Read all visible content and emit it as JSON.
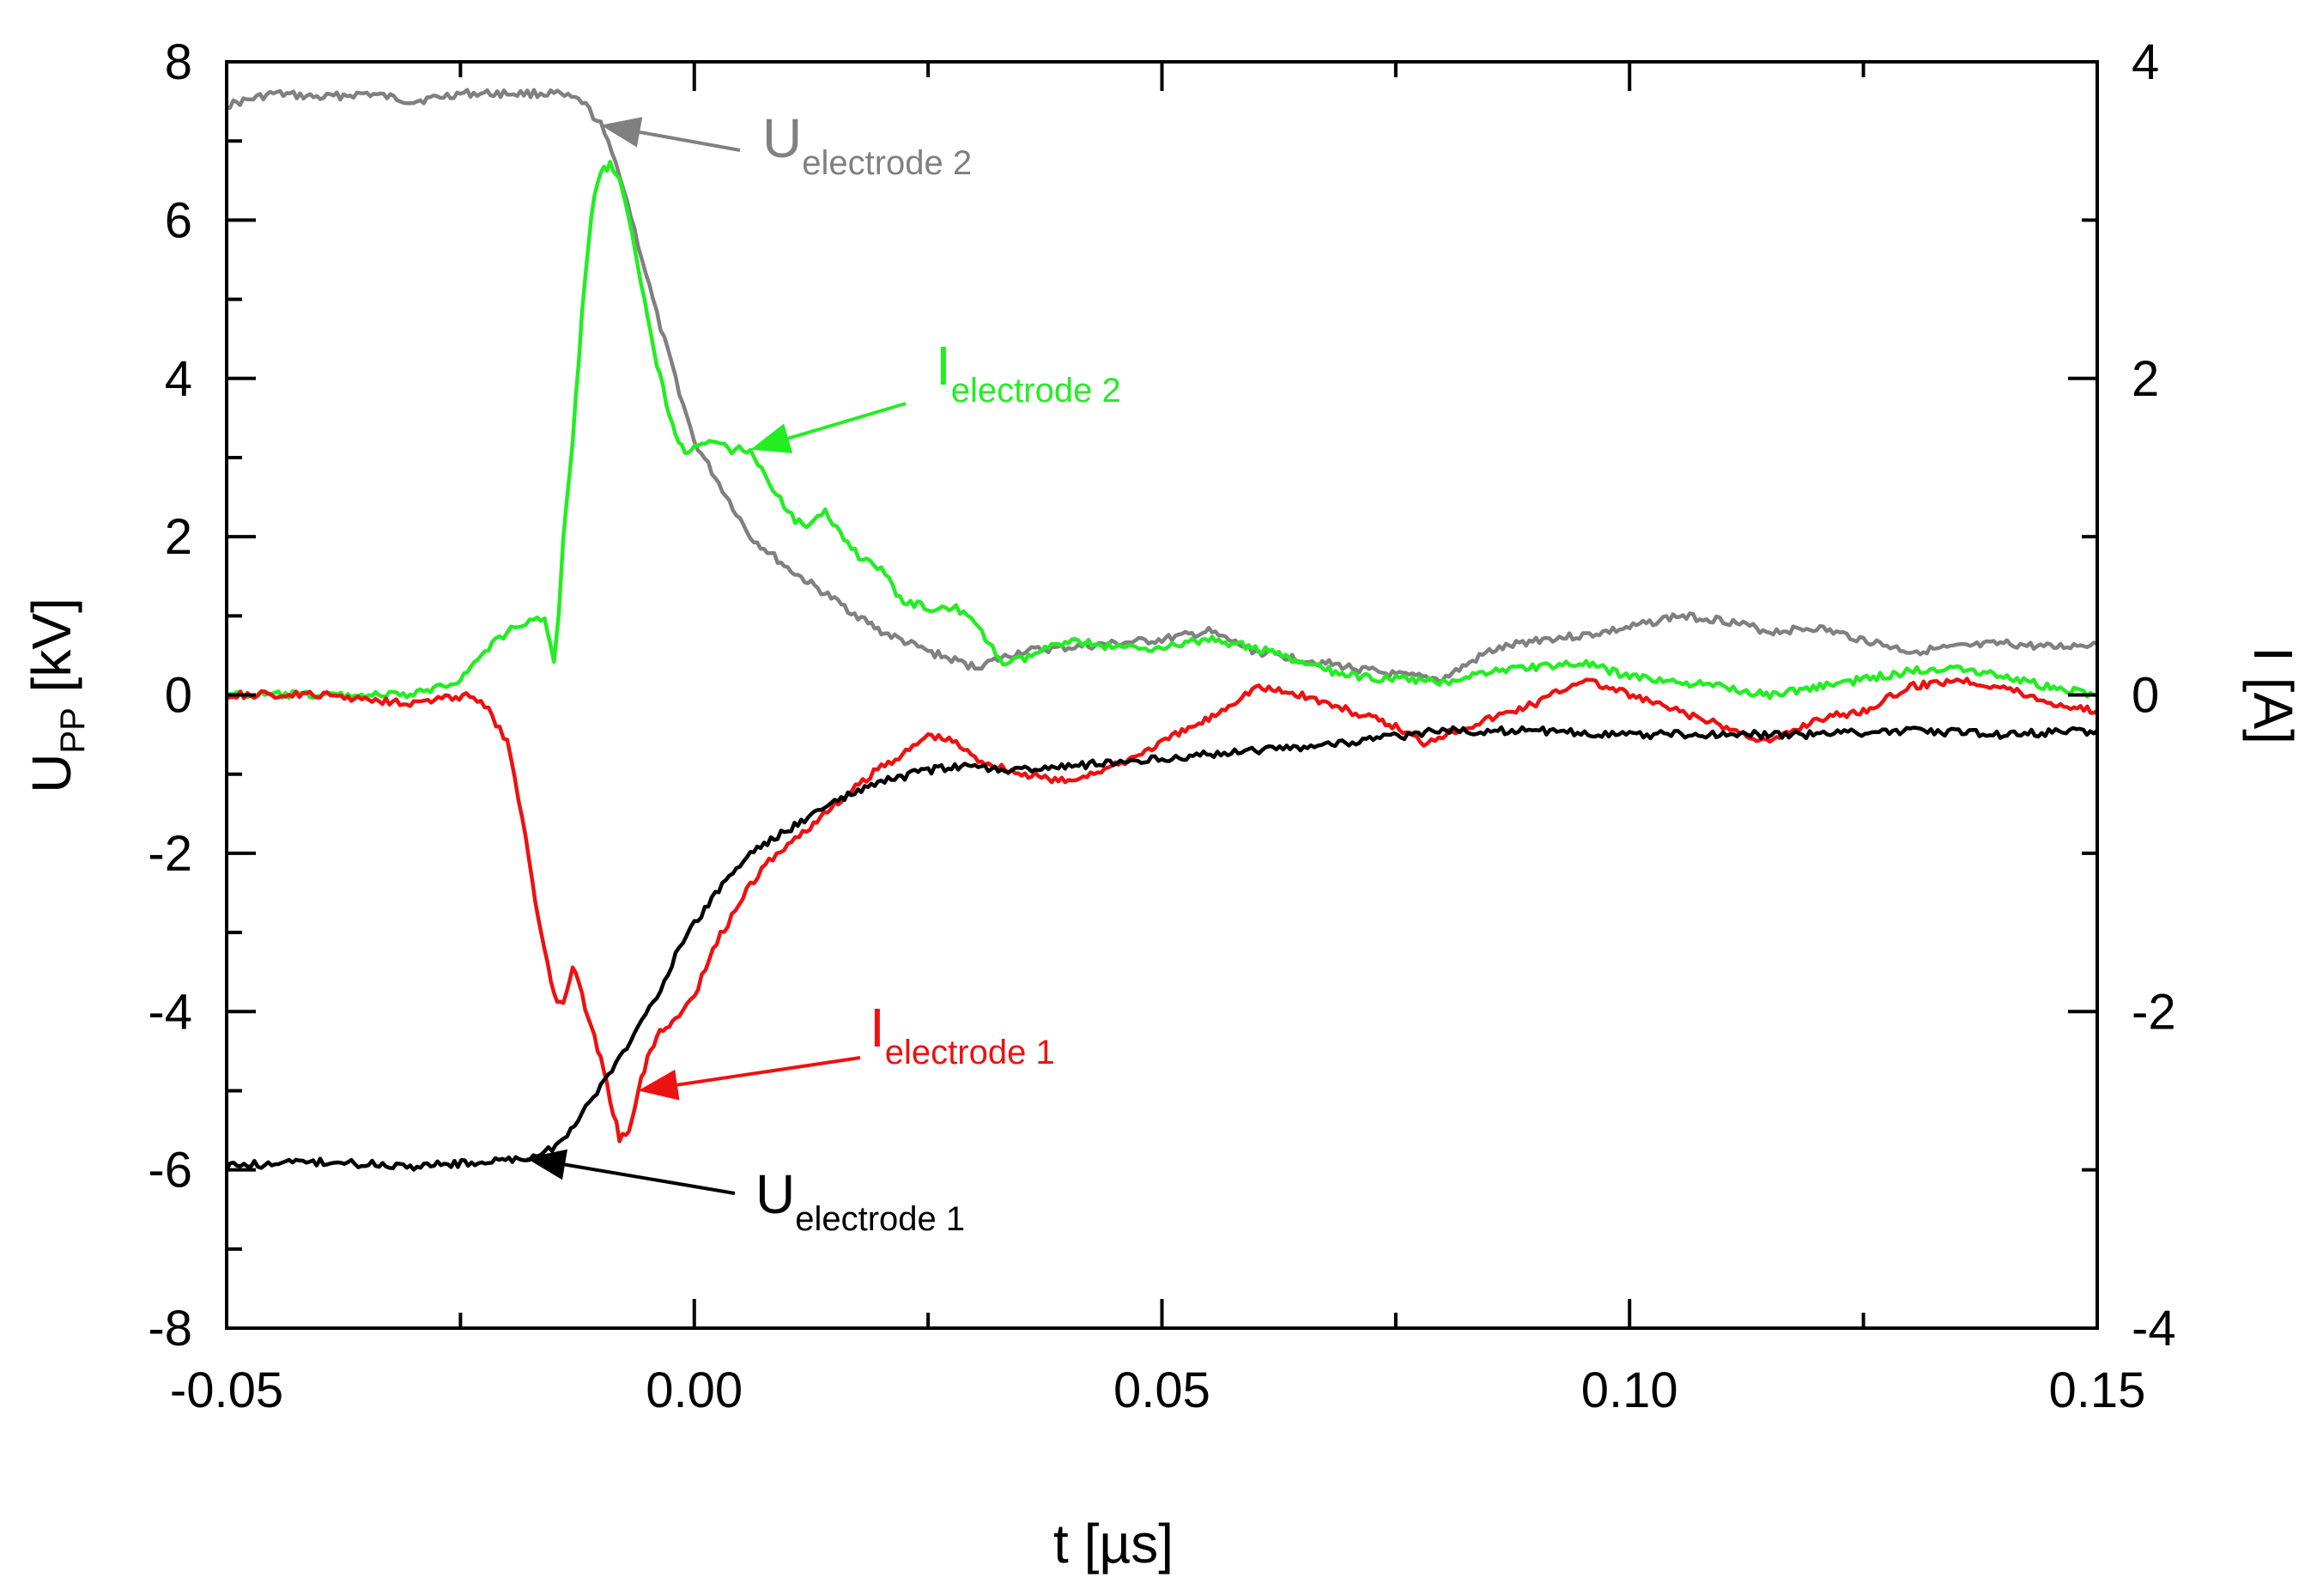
{
  "chart_data": {
    "type": "line",
    "title": "",
    "xlabel": "t [µs]",
    "ylabel_left": {
      "base": "U",
      "sub": "PP",
      "rest": " [kV]"
    },
    "ylabel_right": "I [A]",
    "xlim": [
      -0.05,
      0.15
    ],
    "ylim_left": [
      -8,
      8
    ],
    "ylim_right": [
      -4,
      4
    ],
    "grid": false,
    "x_ticks": [
      {
        "v": -0.05,
        "label": "-0.05"
      },
      {
        "v": 0.0,
        "label": "0.00"
      },
      {
        "v": 0.05,
        "label": "0.05"
      },
      {
        "v": 0.1,
        "label": "0.10"
      },
      {
        "v": 0.15,
        "label": "0.15"
      }
    ],
    "y_left_ticks": [
      {
        "v": 8,
        "label": "8"
      },
      {
        "v": 6,
        "label": "6"
      },
      {
        "v": 4,
        "label": "4"
      },
      {
        "v": 2,
        "label": "2"
      },
      {
        "v": 0,
        "label": "0"
      },
      {
        "v": -2,
        "label": "-2"
      },
      {
        "v": -4,
        "label": "-4"
      },
      {
        "v": -6,
        "label": "-6"
      },
      {
        "v": -8,
        "label": "-8"
      }
    ],
    "y_right_ticks": [
      {
        "v": 4,
        "label": "4"
      },
      {
        "v": 2,
        "label": "2"
      },
      {
        "v": 0,
        "label": "0"
      },
      {
        "v": -2,
        "label": "-2"
      },
      {
        "v": -4,
        "label": "-4"
      }
    ],
    "series": [
      {
        "name": "U electrode 2",
        "axis": "left",
        "color": "#808080",
        "x": [
          -0.05,
          -0.045,
          -0.04,
          -0.035,
          -0.03,
          -0.025,
          -0.02,
          -0.015,
          -0.012,
          -0.01,
          -0.008,
          -0.006,
          -0.004,
          -0.002,
          0.0,
          0.003,
          0.006,
          0.01,
          0.015,
          0.02,
          0.025,
          0.03,
          0.035,
          0.04,
          0.045,
          0.05,
          0.055,
          0.06,
          0.065,
          0.07,
          0.075,
          0.08,
          0.085,
          0.09,
          0.095,
          0.1,
          0.105,
          0.11,
          0.115,
          0.12,
          0.125,
          0.13,
          0.135,
          0.14,
          0.145,
          0.15
        ],
        "y": [
          7.45,
          7.6,
          7.55,
          7.6,
          7.5,
          7.6,
          7.6,
          7.6,
          7.5,
          7.2,
          6.6,
          5.7,
          4.8,
          4.0,
          3.2,
          2.6,
          2.0,
          1.6,
          1.2,
          0.8,
          0.55,
          0.35,
          0.55,
          0.6,
          0.65,
          0.7,
          0.8,
          0.55,
          0.45,
          0.35,
          0.25,
          0.2,
          0.55,
          0.7,
          0.75,
          0.85,
          1.0,
          0.95,
          0.8,
          0.85,
          0.7,
          0.55,
          0.6,
          0.65,
          0.6,
          0.65
        ]
      },
      {
        "name": "I electrode 2",
        "axis": "right",
        "color": "#22ee22",
        "x": [
          -0.05,
          -0.04,
          -0.03,
          -0.025,
          -0.022,
          -0.02,
          -0.018,
          -0.016,
          -0.015,
          -0.0145,
          -0.014,
          -0.013,
          -0.012,
          -0.011,
          -0.01,
          -0.009,
          -0.008,
          -0.007,
          -0.006,
          -0.005,
          -0.004,
          -0.003,
          -0.002,
          -0.001,
          0.0,
          0.002,
          0.004,
          0.006,
          0.008,
          0.01,
          0.012,
          0.014,
          0.016,
          0.018,
          0.02,
          0.022,
          0.025,
          0.028,
          0.03,
          0.033,
          0.035,
          0.04,
          0.045,
          0.05,
          0.055,
          0.06,
          0.065,
          0.07,
          0.075,
          0.08,
          0.085,
          0.09,
          0.095,
          0.1,
          0.105,
          0.11,
          0.115,
          0.12,
          0.125,
          0.13,
          0.135,
          0.14,
          0.145,
          0.15
        ],
        "y": [
          0.0,
          0.0,
          0.0,
          0.1,
          0.3,
          0.4,
          0.45,
          0.5,
          0.2,
          0.5,
          1.0,
          1.6,
          2.4,
          3.05,
          3.3,
          3.35,
          3.25,
          3.0,
          2.7,
          2.4,
          2.1,
          1.85,
          1.65,
          1.55,
          1.55,
          1.6,
          1.55,
          1.55,
          1.35,
          1.15,
          1.05,
          1.15,
          1.0,
          0.85,
          0.8,
          0.6,
          0.55,
          0.55,
          0.45,
          0.2,
          0.22,
          0.35,
          0.3,
          0.3,
          0.35,
          0.3,
          0.2,
          0.12,
          0.1,
          0.08,
          0.15,
          0.18,
          0.2,
          0.12,
          0.08,
          0.05,
          0.0,
          0.05,
          0.1,
          0.15,
          0.18,
          0.12,
          0.05,
          0.0
        ]
      },
      {
        "name": "I electrode 1",
        "axis": "right",
        "color": "#ee1111",
        "x": [
          -0.05,
          -0.04,
          -0.03,
          -0.024,
          -0.022,
          -0.02,
          -0.018,
          -0.017,
          -0.016,
          -0.015,
          -0.014,
          -0.013,
          -0.012,
          -0.011,
          -0.01,
          -0.009,
          -0.008,
          -0.007,
          -0.006,
          -0.005,
          -0.004,
          -0.003,
          -0.002,
          0.0,
          0.002,
          0.004,
          0.006,
          0.008,
          0.01,
          0.012,
          0.015,
          0.018,
          0.02,
          0.023,
          0.025,
          0.028,
          0.03,
          0.035,
          0.04,
          0.042,
          0.045,
          0.05,
          0.055,
          0.06,
          0.065,
          0.07,
          0.075,
          0.078,
          0.08,
          0.085,
          0.09,
          0.095,
          0.1,
          0.105,
          0.11,
          0.115,
          0.12,
          0.125,
          0.13,
          0.135,
          0.14,
          0.145,
          0.15
        ],
        "y": [
          0.0,
          0.0,
          -0.05,
          0.0,
          -0.1,
          -0.3,
          -0.9,
          -1.3,
          -1.6,
          -1.9,
          -1.95,
          -1.7,
          -1.9,
          -2.1,
          -2.3,
          -2.55,
          -2.8,
          -2.75,
          -2.5,
          -2.3,
          -2.15,
          -2.1,
          -2.05,
          -1.9,
          -1.6,
          -1.4,
          -1.2,
          -1.05,
          -0.95,
          -0.85,
          -0.7,
          -0.55,
          -0.45,
          -0.35,
          -0.25,
          -0.3,
          -0.4,
          -0.5,
          -0.55,
          -0.5,
          -0.45,
          -0.3,
          -0.15,
          0.05,
          0.0,
          -0.1,
          -0.2,
          -0.3,
          -0.25,
          -0.15,
          -0.05,
          0.1,
          0.0,
          -0.1,
          -0.2,
          -0.3,
          -0.15,
          -0.1,
          0.05,
          0.1,
          0.05,
          -0.05,
          -0.1
        ]
      },
      {
        "name": "U electrode 1",
        "axis": "left",
        "color": "#000000",
        "x": [
          -0.05,
          -0.04,
          -0.03,
          -0.022,
          -0.018,
          -0.016,
          -0.014,
          -0.012,
          -0.01,
          -0.008,
          -0.006,
          -0.004,
          -0.002,
          0.0,
          0.003,
          0.006,
          0.01,
          0.015,
          0.02,
          0.025,
          0.03,
          0.035,
          0.04,
          0.05,
          0.06,
          0.07,
          0.08,
          0.09,
          0.1,
          0.11,
          0.12,
          0.13,
          0.14,
          0.15
        ],
        "y": [
          -5.95,
          -5.9,
          -5.95,
          -5.9,
          -5.85,
          -5.8,
          -5.6,
          -5.3,
          -4.95,
          -4.6,
          -4.2,
          -3.8,
          -3.3,
          -2.9,
          -2.4,
          -2.0,
          -1.7,
          -1.35,
          -1.1,
          -0.95,
          -0.9,
          -0.95,
          -0.9,
          -0.8,
          -0.7,
          -0.6,
          -0.45,
          -0.45,
          -0.5,
          -0.5,
          -0.5,
          -0.45,
          -0.5,
          -0.45
        ]
      }
    ],
    "annotations": [
      {
        "base": "U",
        "sub": "electrode 2",
        "color": "#808080",
        "series": "U electrode 2"
      },
      {
        "base": "I",
        "sub": "electrode 2",
        "color": "#22ee22",
        "series": "I electrode 2"
      },
      {
        "base": "I",
        "sub": "electrode 1",
        "color": "#ee1111",
        "series": "I electrode 1"
      },
      {
        "base": "U",
        "sub": "electrode 1",
        "color": "#000000",
        "series": "U electrode 1"
      }
    ]
  }
}
